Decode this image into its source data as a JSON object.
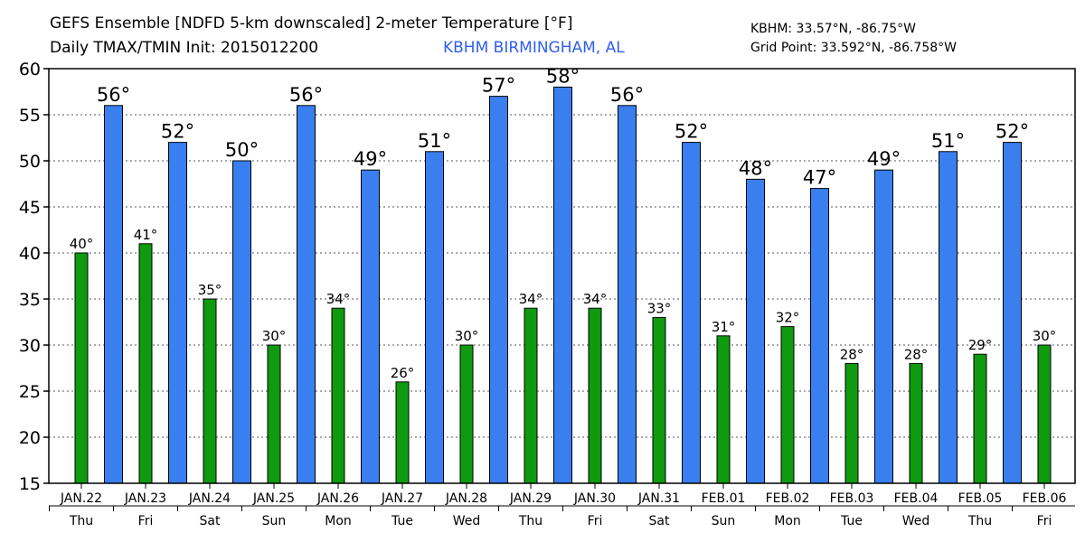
{
  "header": {
    "title": "GEFS Ensemble [NDFD 5-km downscaled] 2-meter Temperature [°F]",
    "subtitle": "Daily TMAX/TMIN Init: 2015012200",
    "station_name": "KBHM BIRMINGHAM, AL",
    "station_coords": "KBHM: 33.57°N, -86.75°W",
    "grid_point": "Grid Point: 33.592°N, -86.758°W"
  },
  "colors": {
    "tmax": "#3a7ff0",
    "tmin": "#0f9a0f",
    "station": "#2f5fef"
  },
  "chart_data": {
    "type": "bar",
    "ylim": [
      15,
      60
    ],
    "yticks": [
      15,
      20,
      25,
      30,
      35,
      40,
      45,
      50,
      55,
      60
    ],
    "grid": true,
    "days": [
      {
        "date": "JAN.22",
        "dow": "Thu",
        "tmin": 40,
        "tmin_label": "40°",
        "tmax": 56,
        "tmax_label": "56°"
      },
      {
        "date": "JAN.23",
        "dow": "Fri",
        "tmin": 41,
        "tmin_label": "41°",
        "tmax": 52,
        "tmax_label": "52°"
      },
      {
        "date": "JAN.24",
        "dow": "Sat",
        "tmin": 35,
        "tmin_label": "35°",
        "tmax": 50,
        "tmax_label": "50°"
      },
      {
        "date": "JAN.25",
        "dow": "Sun",
        "tmin": 30,
        "tmin_label": "30°",
        "tmax": 56,
        "tmax_label": "56°"
      },
      {
        "date": "JAN.26",
        "dow": "Mon",
        "tmin": 34,
        "tmin_label": "34°",
        "tmax": 49,
        "tmax_label": "49°"
      },
      {
        "date": "JAN.27",
        "dow": "Tue",
        "tmin": 26,
        "tmin_label": "26°",
        "tmax": 51,
        "tmax_label": "51°"
      },
      {
        "date": "JAN.28",
        "dow": "Wed",
        "tmin": 30,
        "tmin_label": "30°",
        "tmax": 57,
        "tmax_label": "57°"
      },
      {
        "date": "JAN.29",
        "dow": "Thu",
        "tmin": 34,
        "tmin_label": "34°",
        "tmax": 58,
        "tmax_label": "58°"
      },
      {
        "date": "JAN.30",
        "dow": "Fri",
        "tmin": 34,
        "tmin_label": "34°",
        "tmax": 56,
        "tmax_label": "56°"
      },
      {
        "date": "JAN.31",
        "dow": "Sat",
        "tmin": 33,
        "tmin_label": "33°",
        "tmax": 52,
        "tmax_label": "52°"
      },
      {
        "date": "FEB.01",
        "dow": "Sun",
        "tmin": 31,
        "tmin_label": "31°",
        "tmax": 48,
        "tmax_label": "48°"
      },
      {
        "date": "FEB.02",
        "dow": "Mon",
        "tmin": 32,
        "tmin_label": "32°",
        "tmax": 47,
        "tmax_label": "47°"
      },
      {
        "date": "FEB.03",
        "dow": "Tue",
        "tmin": 28,
        "tmin_label": "28°",
        "tmax": 49,
        "tmax_label": "49°"
      },
      {
        "date": "FEB.04",
        "dow": "Wed",
        "tmin": 28,
        "tmin_label": "28°",
        "tmax": 51,
        "tmax_label": "51°"
      },
      {
        "date": "FEB.05",
        "dow": "Thu",
        "tmin": 29,
        "tmin_label": "29°",
        "tmax": 52,
        "tmax_label": "52°"
      },
      {
        "date": "FEB.06",
        "dow": "Fri",
        "tmin": 30,
        "tmin_label": "30°",
        "tmax": null,
        "tmax_label": ""
      }
    ]
  }
}
